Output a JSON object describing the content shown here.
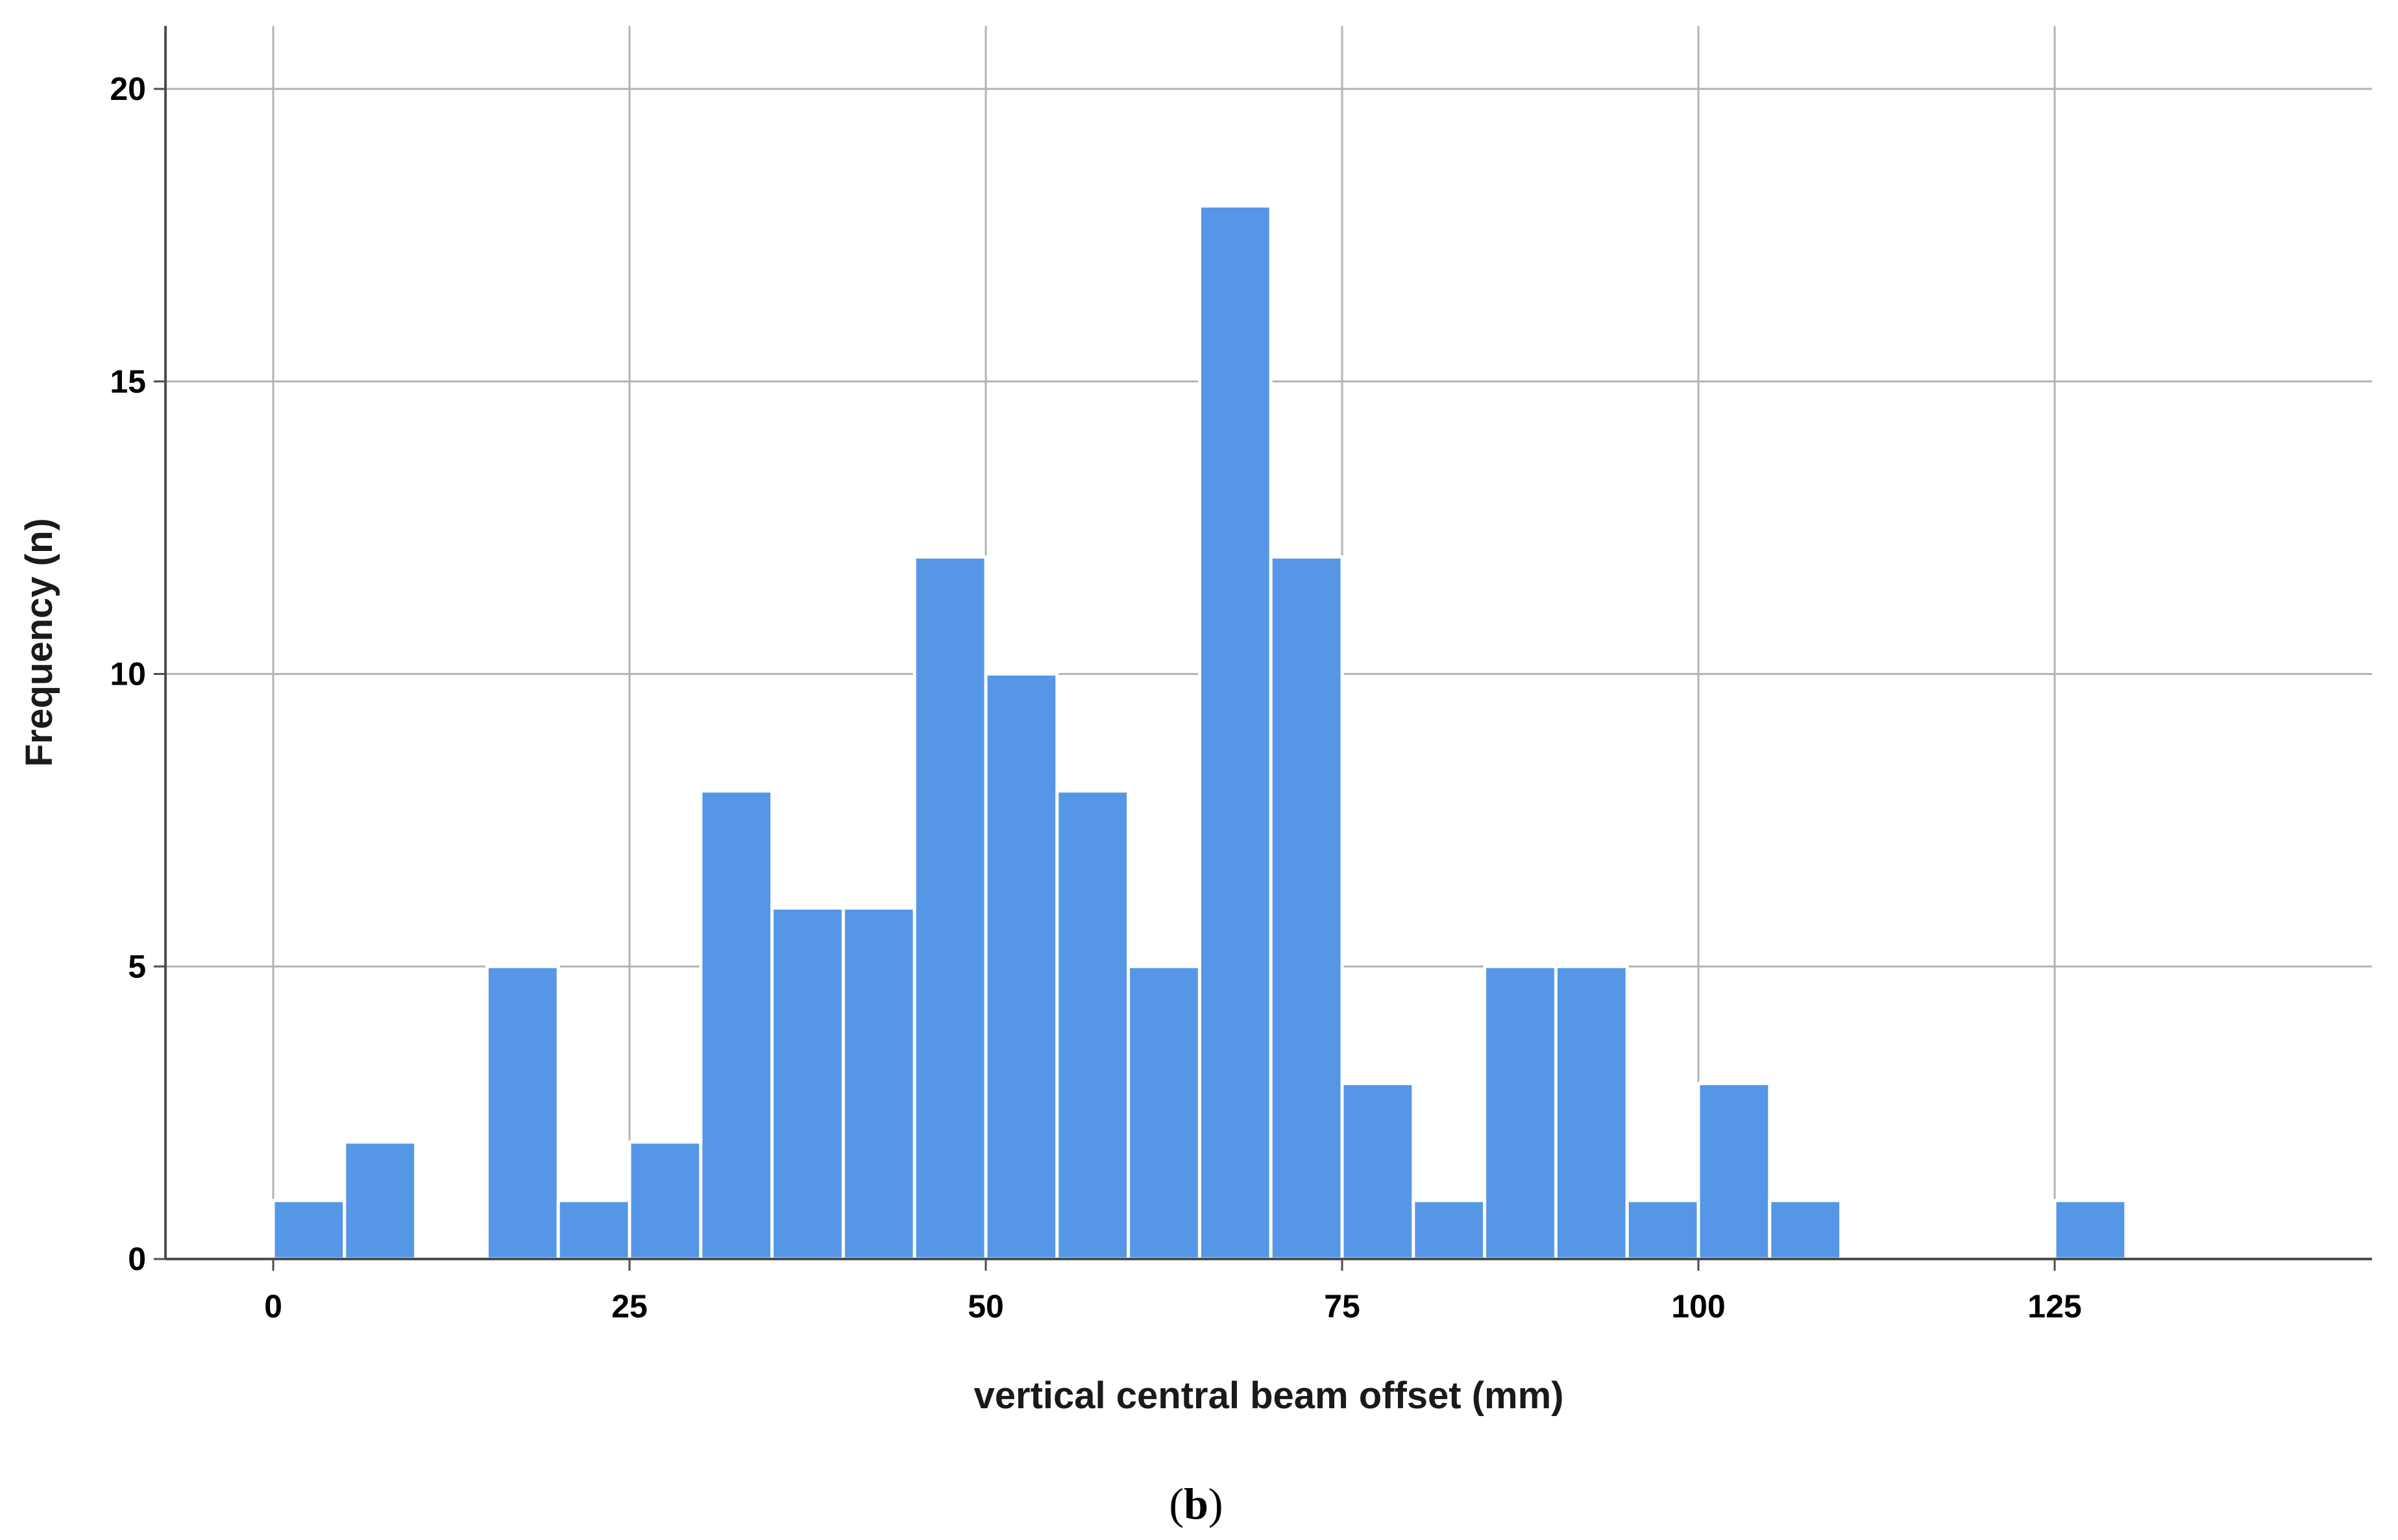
{
  "chart_data": {
    "type": "bar",
    "subtype": "histogram",
    "title": "",
    "xlabel": "vertical central beam offset (mm)",
    "ylabel": "Frequency (n)",
    "caption": {
      "open": "(",
      "letter": "b",
      "close": ")"
    },
    "xlim": [
      -15,
      148
    ],
    "ylim": [
      0,
      21
    ],
    "x_ticks": [
      0,
      25,
      50,
      75,
      100,
      125
    ],
    "y_ticks": [
      0,
      5,
      10,
      15,
      20
    ],
    "bin_width": 5,
    "bins": [
      {
        "start": 0,
        "end": 5,
        "count": 1
      },
      {
        "start": 5,
        "end": 10,
        "count": 2
      },
      {
        "start": 15,
        "end": 20,
        "count": 5
      },
      {
        "start": 20,
        "end": 25,
        "count": 1
      },
      {
        "start": 25,
        "end": 30,
        "count": 2
      },
      {
        "start": 30,
        "end": 35,
        "count": 8
      },
      {
        "start": 35,
        "end": 40,
        "count": 6
      },
      {
        "start": 40,
        "end": 45,
        "count": 6
      },
      {
        "start": 45,
        "end": 50,
        "count": 12
      },
      {
        "start": 50,
        "end": 55,
        "count": 10
      },
      {
        "start": 55,
        "end": 60,
        "count": 8
      },
      {
        "start": 60,
        "end": 65,
        "count": 5
      },
      {
        "start": 65,
        "end": 70,
        "count": 18
      },
      {
        "start": 70,
        "end": 75,
        "count": 12
      },
      {
        "start": 75,
        "end": 80,
        "count": 3
      },
      {
        "start": 80,
        "end": 85,
        "count": 1
      },
      {
        "start": 85,
        "end": 90,
        "count": 5
      },
      {
        "start": 90,
        "end": 95,
        "count": 5
      },
      {
        "start": 95,
        "end": 100,
        "count": 1
      },
      {
        "start": 100,
        "end": 105,
        "count": 3
      },
      {
        "start": 105,
        "end": 110,
        "count": 1
      },
      {
        "start": 125,
        "end": 130,
        "count": 1
      }
    ],
    "grid": true,
    "legend": "none",
    "colors": {
      "bar_fill": "#5596e6",
      "bar_edge": "#ffffff",
      "grid": "#b3b3b3",
      "axis": "#4d4d4d",
      "background": "#ffffff"
    }
  }
}
